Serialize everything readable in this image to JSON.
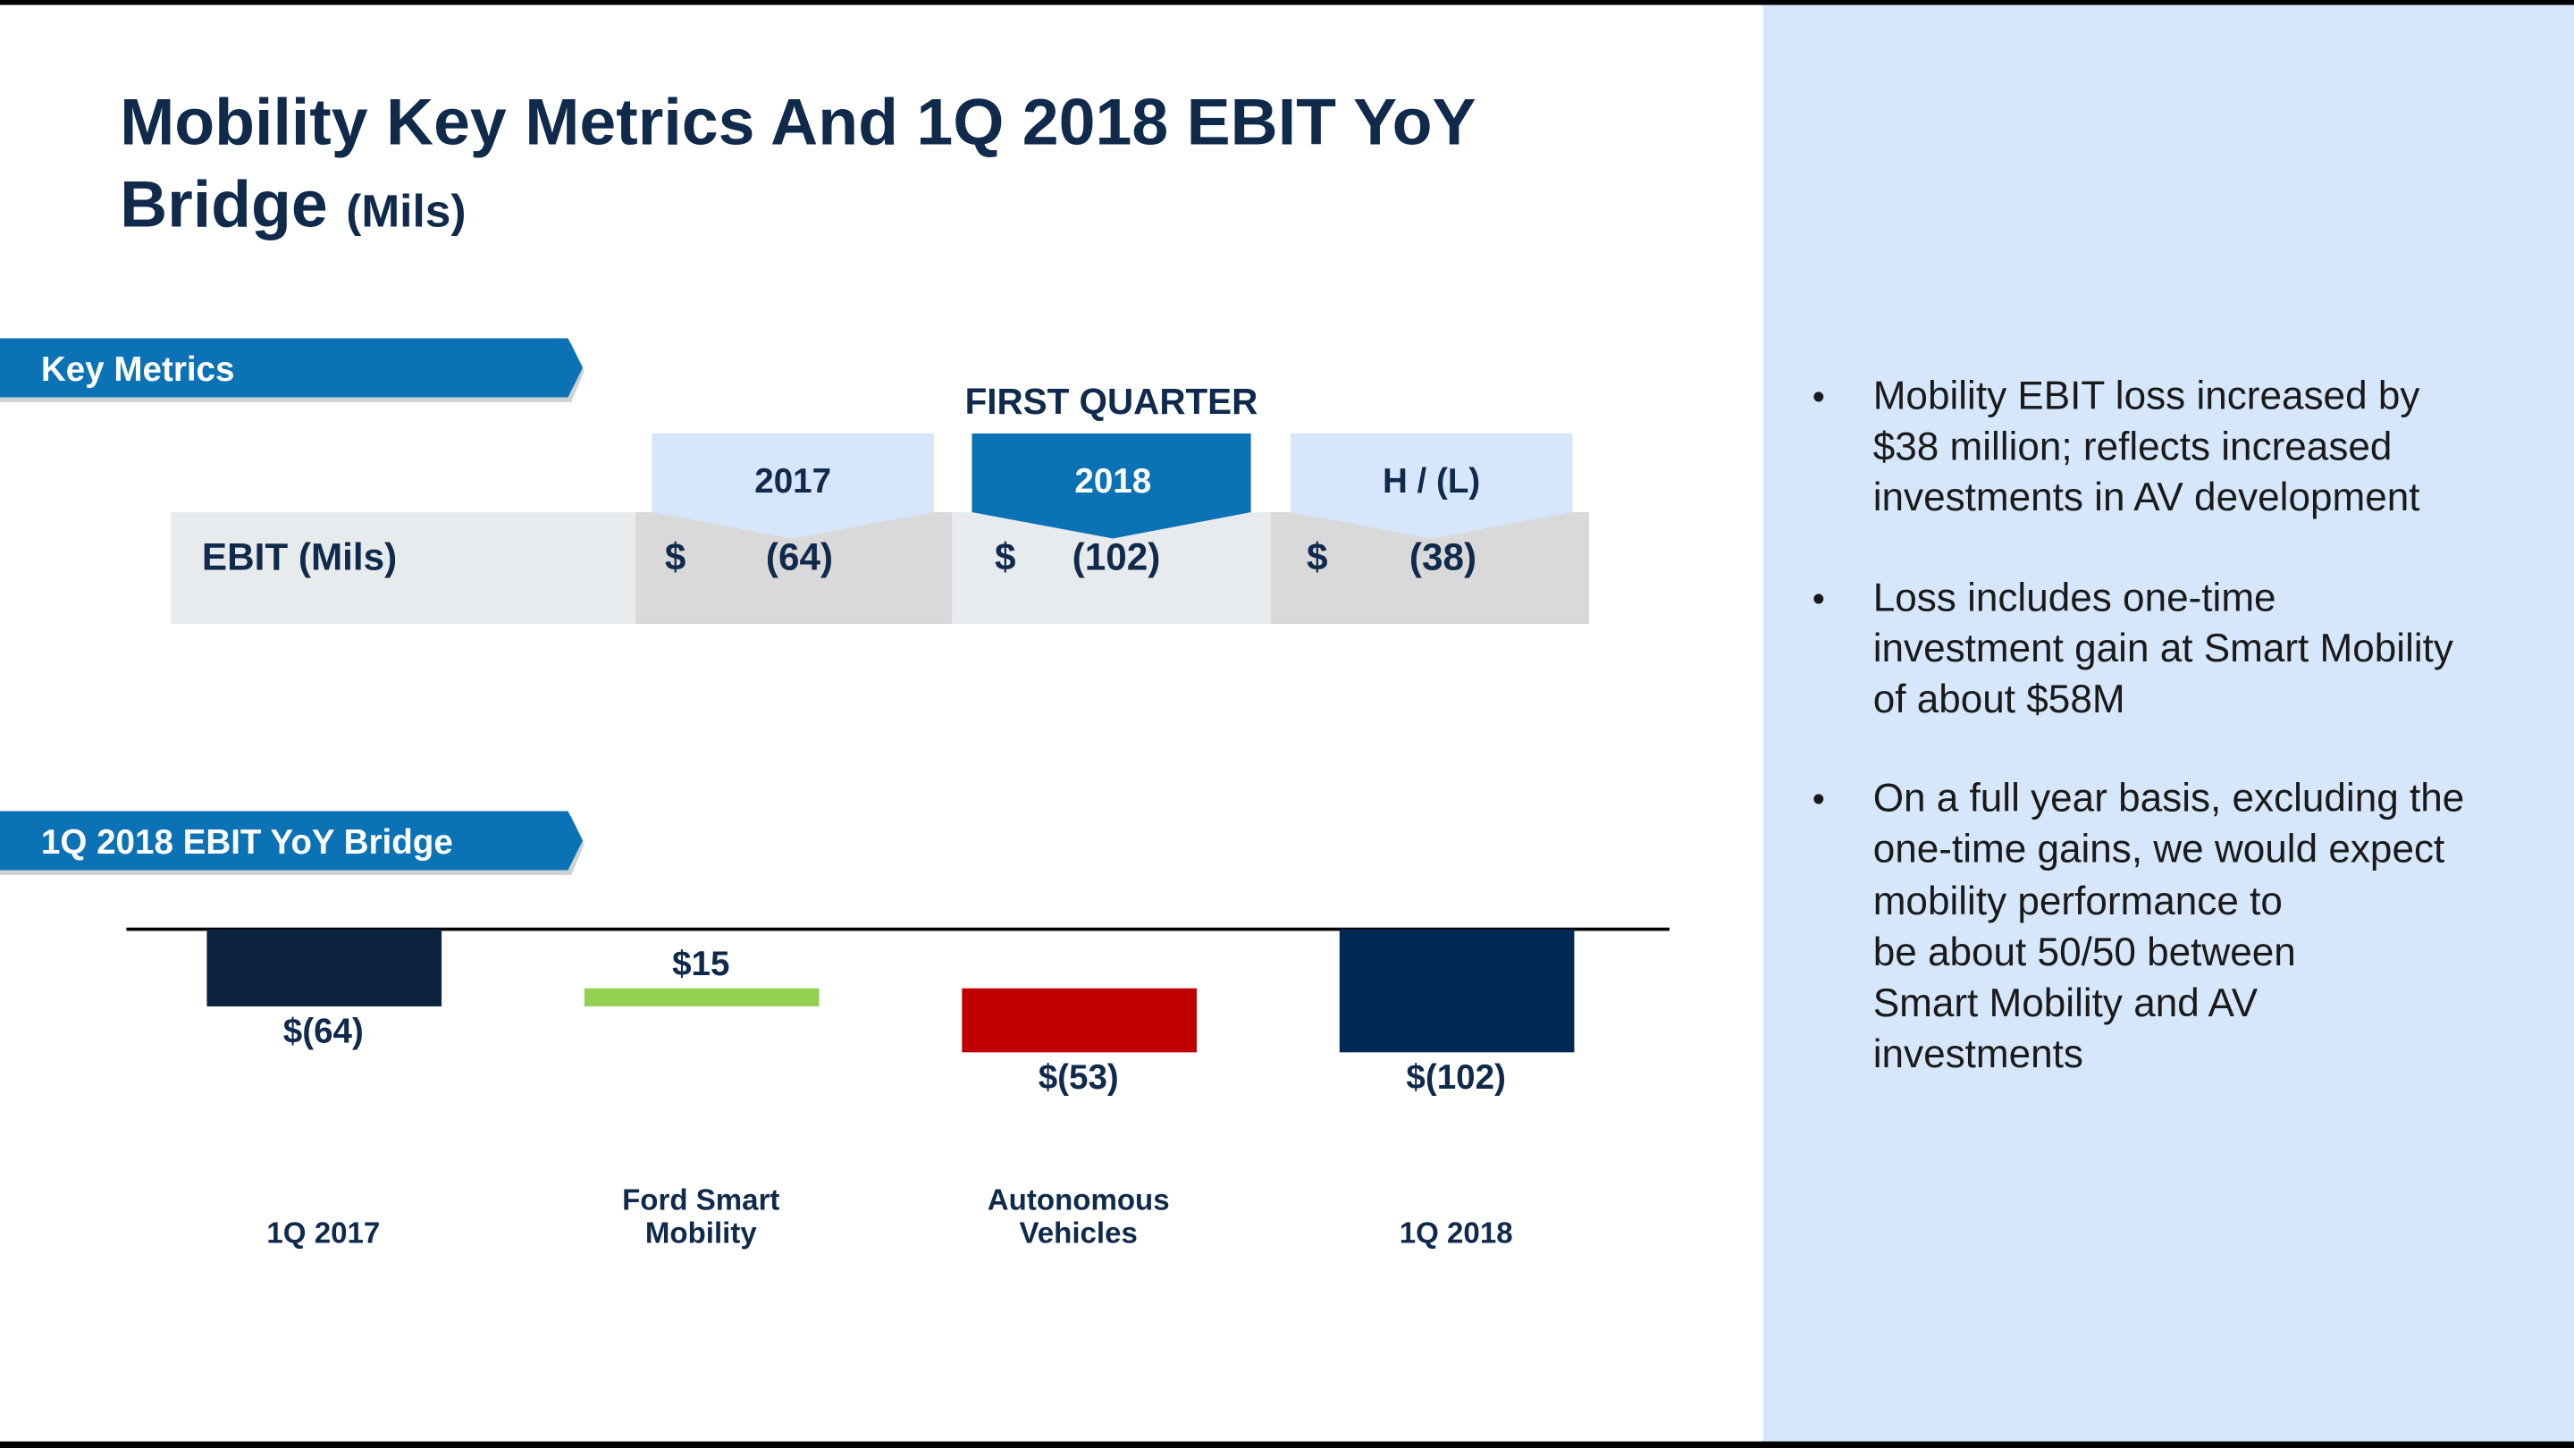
{
  "title": "Mobility Key Metrics And 1Q 2018 EBIT YoY Bridge",
  "title_unit": "(Mils)",
  "key_metrics_banner": "Key Metrics",
  "table": {
    "header": "FIRST QUARTER",
    "columns": [
      "2017",
      "2018",
      "H / (L)"
    ],
    "rows": [
      {
        "label": "EBIT (Mils)",
        "cells": [
          [
            "$",
            "(64)"
          ],
          [
            "$",
            "(102)"
          ],
          [
            "$",
            "(38)"
          ]
        ]
      }
    ]
  },
  "bridge_banner": "1Q 2018 EBIT YoY Bridge",
  "chart_data": {
    "type": "waterfall",
    "categories": [
      "1Q 2017",
      "Ford Smart Mobility",
      "Autonomous Vehicles",
      "1Q 2018"
    ],
    "values": [
      -64,
      15,
      -53,
      -102
    ],
    "value_labels": [
      "$(64)",
      "$15",
      "$(53)",
      "$(102)"
    ],
    "totals": [
      true,
      false,
      false,
      true
    ],
    "colors": [
      "#0c2340",
      "#92d050",
      "#c00000",
      "#002855"
    ]
  },
  "bullets": [
    [
      "Mobility EBIT loss increased by",
      "$38 million; reflects increased",
      "investments in AV development"
    ],
    [
      "Loss includes one-time",
      "investment gain at Smart Mobility",
      "of about $58M"
    ],
    [
      "On a full year basis, excluding the",
      "one-time gains, we would expect",
      "mobility performance to",
      "be about 50/50 between",
      "Smart Mobility and AV",
      "investments"
    ]
  ],
  "bullet_mark": "•"
}
